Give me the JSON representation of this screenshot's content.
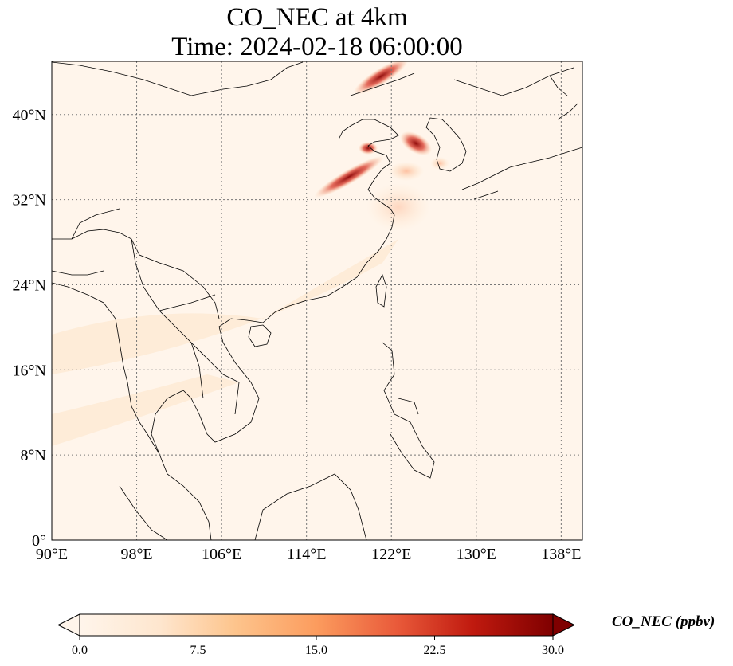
{
  "title": {
    "line1": "CO_NEC at 4km",
    "line2": "Time: 2024-02-18 06:00:00"
  },
  "map": {
    "lon_range": [
      90,
      140
    ],
    "lat_range": [
      0,
      45
    ],
    "lon_ticks": [
      {
        "value": 90,
        "label": "90°E"
      },
      {
        "value": 98,
        "label": "98°E"
      },
      {
        "value": 106,
        "label": "106°E"
      },
      {
        "value": 114,
        "label": "114°E"
      },
      {
        "value": 122,
        "label": "122°E"
      },
      {
        "value": 130,
        "label": "130°E"
      },
      {
        "value": 138,
        "label": "138°E"
      }
    ],
    "lat_ticks": [
      {
        "value": 0,
        "label": "0°"
      },
      {
        "value": 8,
        "label": "8°N"
      },
      {
        "value": 16,
        "label": "16°N"
      },
      {
        "value": 24,
        "label": "24°N"
      },
      {
        "value": 32,
        "label": "32°N"
      },
      {
        "value": 40,
        "label": "40°N"
      }
    ],
    "gridlines": "dotted",
    "background_color": "#fff5eb",
    "coastline_color": "#000000"
  },
  "colorbar": {
    "label": "CO_NEC (ppbv)",
    "min": 0.0,
    "max": 30.0,
    "extend": "both",
    "ticks": [
      {
        "value": 0.0,
        "label": "0.0"
      },
      {
        "value": 7.5,
        "label": "7.5"
      },
      {
        "value": 15.0,
        "label": "15.0"
      },
      {
        "value": 22.5,
        "label": "22.5"
      },
      {
        "value": 30.0,
        "label": "30.0"
      }
    ],
    "colormap": "OrRd",
    "colors": [
      "#fff5eb",
      "#fdd0a2",
      "#fdae6b",
      "#f16913",
      "#d94801",
      "#a63603",
      "#7f0000"
    ]
  }
}
